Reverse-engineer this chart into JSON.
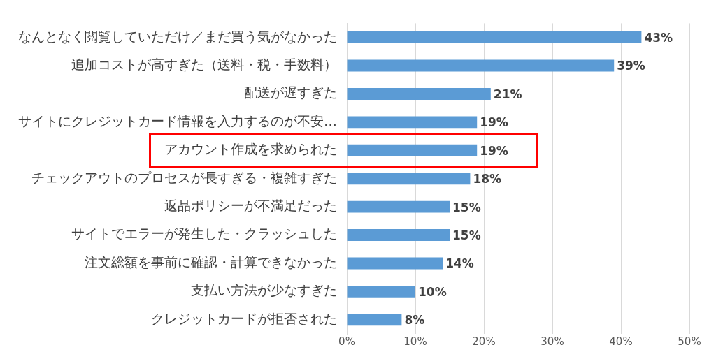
{
  "chart_data": {
    "type": "bar",
    "orientation": "horizontal",
    "categories": [
      "なんとなく閲覧していただけ／まだ買う気がなかった",
      "追加コストが高すぎた（送料・税・手数料）",
      "配送が遅すぎた",
      "サイトにクレジットカード情報を入力するのが不安…",
      "アカウント作成を求められた",
      "チェックアウトのプロセスが長すぎる・複雑すぎた",
      "返品ポリシーが不満足だった",
      "サイトでエラーが発生した・クラッシュした",
      "注文総額を事前に確認・計算できなかった",
      "支払い方法が少なすぎた",
      "クレジットカードが拒否された"
    ],
    "values": [
      43,
      39,
      21,
      19,
      19,
      18,
      15,
      15,
      14,
      10,
      8
    ],
    "value_labels": [
      "43%",
      "39%",
      "21%",
      "19%",
      "19%",
      "18%",
      "15%",
      "15%",
      "14%",
      "10%",
      "8%"
    ],
    "color": "#5b9bd5",
    "xlim": [
      0,
      50
    ],
    "xticks": [
      {
        "value": 0,
        "label": "0%"
      },
      {
        "value": 10,
        "label": "10%"
      },
      {
        "value": 20,
        "label": "20%"
      },
      {
        "value": 30,
        "label": "30%"
      },
      {
        "value": 40,
        "label": "40%"
      },
      {
        "value": 50,
        "label": "50%"
      }
    ],
    "grid": "x",
    "legend": false
  }
}
